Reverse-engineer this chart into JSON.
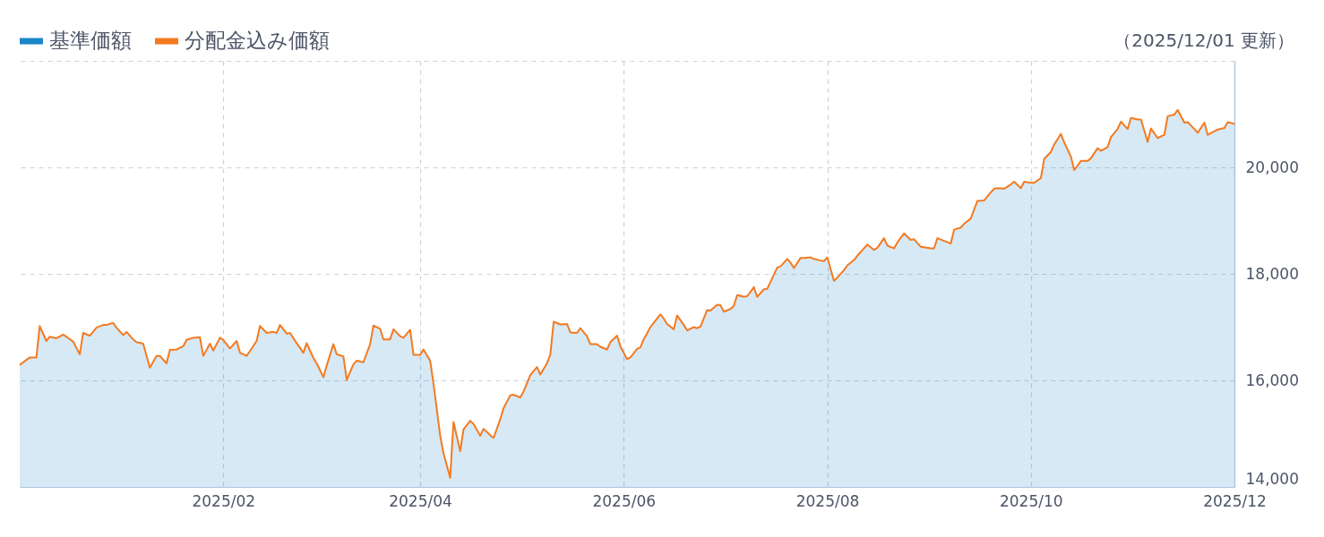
{
  "chart_data": {
    "type": "line",
    "annotations": [
      "（2025/12/01 更新）"
    ],
    "legend": "top left",
    "grid": true,
    "xlim": [
      "2024-12-02",
      "2025-12-01"
    ],
    "xticks": [
      {
        "value": "2025-02-01",
        "label": "2025/02"
      },
      {
        "value": "2025-04-01",
        "label": "2025/04"
      },
      {
        "value": "2025-06-01",
        "label": "2025/06"
      },
      {
        "value": "2025-08-01",
        "label": "2025/08"
      },
      {
        "value": "2025-10-01",
        "label": "2025/10"
      },
      {
        "value": "2025-12-01",
        "label": "2025/12"
      }
    ],
    "ylim": [
      14000,
      22000
    ],
    "yticks": [
      {
        "value": 14000,
        "label": "14,000"
      },
      {
        "value": 16000,
        "label": "16,000"
      },
      {
        "value": 18000,
        "label": "18,000"
      },
      {
        "value": 20000,
        "label": "20,000"
      },
      {
        "value": 22000,
        "label": null
      }
    ],
    "x": [
      "2024-12-02",
      "2024-12-05",
      "2024-12-07",
      "2024-12-08",
      "2024-12-10",
      "2024-12-11",
      "2024-12-13",
      "2024-12-15",
      "2024-12-16",
      "2024-12-18",
      "2024-12-20",
      "2024-12-21",
      "2024-12-23",
      "2024-12-25",
      "2024-12-27",
      "2024-12-28",
      "2024-12-30",
      "2024-12-31",
      "2025-01-02",
      "2025-01-03",
      "2025-01-05",
      "2025-01-06",
      "2025-01-08",
      "2025-01-10",
      "2025-01-12",
      "2025-01-13",
      "2025-01-15",
      "2025-01-16",
      "2025-01-18",
      "2025-01-20",
      "2025-01-21",
      "2025-01-23",
      "2025-01-25",
      "2025-01-26",
      "2025-01-28",
      "2025-01-29",
      "2025-01-31",
      "2025-02-01",
      "2025-02-03",
      "2025-02-05",
      "2025-02-06",
      "2025-02-08",
      "2025-02-09",
      "2025-02-11",
      "2025-02-12",
      "2025-02-14",
      "2025-02-16",
      "2025-02-17",
      "2025-02-18",
      "2025-02-20",
      "2025-02-21",
      "2025-02-23",
      "2025-02-25",
      "2025-02-26",
      "2025-02-28",
      "2025-03-01",
      "2025-03-03",
      "2025-03-04",
      "2025-03-06",
      "2025-03-07",
      "2025-03-09",
      "2025-03-10",
      "2025-03-12",
      "2025-03-13",
      "2025-03-15",
      "2025-03-17",
      "2025-03-18",
      "2025-03-20",
      "2025-03-21",
      "2025-03-23",
      "2025-03-24",
      "2025-03-26",
      "2025-03-27",
      "2025-03-29",
      "2025-03-30",
      "2025-04-01",
      "2025-04-02",
      "2025-04-04",
      "2025-04-05",
      "2025-04-07",
      "2025-04-08",
      "2025-04-10",
      "2025-04-11",
      "2025-04-13",
      "2025-04-14",
      "2025-04-16",
      "2025-04-17",
      "2025-04-19",
      "2025-04-20",
      "2025-04-22",
      "2025-04-23",
      "2025-04-25",
      "2025-04-26",
      "2025-04-28",
      "2025-04-29",
      "2025-05-01",
      "2025-05-02",
      "2025-05-04",
      "2025-05-06",
      "2025-05-07",
      "2025-05-09",
      "2025-05-10",
      "2025-05-11",
      "2025-05-13",
      "2025-05-15",
      "2025-05-16",
      "2025-05-18",
      "2025-05-19",
      "2025-05-21",
      "2025-05-22",
      "2025-05-24",
      "2025-05-25",
      "2025-05-27",
      "2025-05-28",
      "2025-05-30",
      "2025-05-31",
      "2025-06-02",
      "2025-06-03",
      "2025-06-05",
      "2025-06-06",
      "2025-06-07",
      "2025-06-09",
      "2025-06-10",
      "2025-06-12",
      "2025-06-13",
      "2025-06-14",
      "2025-06-16",
      "2025-06-17",
      "2025-06-19",
      "2025-06-20",
      "2025-06-22",
      "2025-06-23",
      "2025-06-24",
      "2025-06-26",
      "2025-06-27",
      "2025-06-29",
      "2025-06-30",
      "2025-07-01",
      "2025-07-03",
      "2025-07-04",
      "2025-07-05",
      "2025-07-07",
      "2025-07-08",
      "2025-07-10",
      "2025-07-11",
      "2025-07-13",
      "2025-07-14",
      "2025-07-15",
      "2025-07-17",
      "2025-07-18",
      "2025-07-20",
      "2025-07-21",
      "2025-07-22",
      "2025-07-24",
      "2025-07-25",
      "2025-07-27",
      "2025-07-28",
      "2025-07-30",
      "2025-07-31",
      "2025-08-01",
      "2025-08-03",
      "2025-08-04",
      "2025-08-06",
      "2025-08-07",
      "2025-08-09",
      "2025-08-10",
      "2025-08-12",
      "2025-08-13",
      "2025-08-15",
      "2025-08-16",
      "2025-08-18",
      "2025-08-19",
      "2025-08-21",
      "2025-08-22",
      "2025-08-24",
      "2025-08-26",
      "2025-08-27",
      "2025-08-29",
      "2025-08-30",
      "2025-09-01",
      "2025-09-02",
      "2025-09-03",
      "2025-09-05",
      "2025-09-07",
      "2025-09-08",
      "2025-09-10",
      "2025-09-11",
      "2025-09-13",
      "2025-09-14",
      "2025-09-15",
      "2025-09-17",
      "2025-09-19",
      "2025-09-20",
      "2025-09-21",
      "2025-09-23",
      "2025-09-25",
      "2025-09-26",
      "2025-09-28",
      "2025-09-29",
      "2025-10-01",
      "2025-10-02",
      "2025-10-04",
      "2025-10-05",
      "2025-10-07",
      "2025-10-08",
      "2025-10-10",
      "2025-10-11",
      "2025-10-13",
      "2025-10-14",
      "2025-10-16",
      "2025-10-18",
      "2025-10-19",
      "2025-10-21",
      "2025-10-22",
      "2025-10-24",
      "2025-10-25",
      "2025-10-27",
      "2025-10-28",
      "2025-10-30",
      "2025-10-31",
      "2025-11-02",
      "2025-11-03",
      "2025-11-05",
      "2025-11-06",
      "2025-11-08",
      "2025-11-10",
      "2025-11-11",
      "2025-11-13",
      "2025-11-14",
      "2025-11-16",
      "2025-11-17",
      "2025-11-19",
      "2025-11-20",
      "2025-11-22",
      "2025-11-23",
      "2025-11-25",
      "2025-11-26",
      "2025-11-28",
      "2025-11-29",
      "2025-12-01"
    ],
    "series": [
      {
        "name": "基準価額",
        "type": "area",
        "color": "#1a86c8",
        "values": [
          16290,
          16430,
          16430,
          17020,
          16740,
          16820,
          16790,
          16860,
          16820,
          16730,
          16490,
          16890,
          16840,
          16990,
          17040,
          17040,
          17080,
          16990,
          16850,
          16910,
          16770,
          16720,
          16690,
          16240,
          16460,
          16460,
          16320,
          16570,
          16580,
          16640,
          16760,
          16800,
          16810,
          16460,
          16690,
          16560,
          16800,
          16760,
          16600,
          16740,
          16520,
          16460,
          16550,
          16740,
          17020,
          16890,
          16910,
          16890,
          17040,
          16880,
          16890,
          16700,
          16520,
          16700,
          16420,
          16320,
          16060,
          16280,
          16680,
          16490,
          16450,
          16010,
          16300,
          16370,
          16340,
          16680,
          17030,
          16970,
          16770,
          16770,
          16960,
          16830,
          16800,
          16950,
          16480,
          16480,
          16580,
          16370,
          15940,
          14960,
          14630,
          14170,
          15220,
          14670,
          15080,
          15240,
          15180,
          14960,
          15090,
          14970,
          14920,
          15270,
          15480,
          15720,
          15730,
          15680,
          15790,
          16100,
          16250,
          16110,
          16320,
          16480,
          17100,
          17050,
          17060,
          16900,
          16890,
          16980,
          16830,
          16680,
          16680,
          16630,
          16580,
          16720,
          16840,
          16640,
          16400,
          16430,
          16590,
          16620,
          16770,
          17000,
          17080,
          17240,
          17160,
          17060,
          16960,
          17220,
          17040,
          16940,
          17000,
          16980,
          17010,
          17320,
          17310,
          17420,
          17410,
          17290,
          17340,
          17400,
          17600,
          17570,
          17580,
          17750,
          17570,
          17710,
          17720,
          17850,
          18120,
          18140,
          18280,
          18210,
          18110,
          18300,
          18300,
          18310,
          18280,
          18250,
          18240,
          18310,
          17870,
          17930,
          18070,
          18160,
          18260,
          18340,
          18480,
          18550,
          18450,
          18490,
          18670,
          18530,
          18480,
          18590,
          18760,
          18640,
          18650,
          18510,
          18500,
          18480,
          18480,
          18670,
          18620,
          18570,
          18830,
          18870,
          18940,
          19040,
          19210,
          19370,
          19380,
          19530,
          19600,
          19610,
          19600,
          19680,
          19730,
          19610,
          19730,
          19710,
          19710,
          19800,
          20160,
          20290,
          20430,
          20630,
          20470,
          20200,
          19950,
          20120,
          20120,
          20170,
          20360,
          20310,
          20380,
          20570,
          20720,
          20860,
          20720,
          20930,
          20900,
          20900,
          20480,
          20730,
          20550,
          20610,
          20960,
          20990,
          21080,
          20840,
          20850,
          20720,
          20650,
          20840,
          20610,
          20680,
          20710,
          20740,
          20850,
          20820
        ]
      },
      {
        "name": "分配金込み価額",
        "color": "#f47a20",
        "values": [
          16290,
          16430,
          16430,
          17020,
          16740,
          16820,
          16790,
          16860,
          16820,
          16730,
          16490,
          16890,
          16840,
          16990,
          17040,
          17040,
          17080,
          16990,
          16850,
          16910,
          16770,
          16720,
          16690,
          16240,
          16460,
          16460,
          16320,
          16570,
          16580,
          16640,
          16760,
          16800,
          16810,
          16460,
          16690,
          16560,
          16800,
          16760,
          16600,
          16740,
          16520,
          16460,
          16550,
          16740,
          17020,
          16890,
          16910,
          16890,
          17040,
          16880,
          16890,
          16700,
          16520,
          16700,
          16420,
          16320,
          16060,
          16280,
          16680,
          16490,
          16450,
          16010,
          16300,
          16370,
          16340,
          16680,
          17030,
          16970,
          16770,
          16770,
          16960,
          16830,
          16800,
          16950,
          16480,
          16480,
          16580,
          16370,
          15940,
          14960,
          14630,
          14170,
          15220,
          14670,
          15080,
          15240,
          15180,
          14960,
          15090,
          14970,
          14920,
          15270,
          15480,
          15720,
          15730,
          15680,
          15790,
          16100,
          16250,
          16110,
          16320,
          16480,
          17100,
          17050,
          17060,
          16900,
          16890,
          16980,
          16830,
          16680,
          16680,
          16630,
          16580,
          16720,
          16840,
          16640,
          16400,
          16430,
          16590,
          16620,
          16770,
          17000,
          17080,
          17240,
          17160,
          17060,
          16960,
          17220,
          17040,
          16940,
          17000,
          16980,
          17010,
          17320,
          17310,
          17420,
          17410,
          17290,
          17340,
          17400,
          17600,
          17570,
          17580,
          17750,
          17570,
          17710,
          17720,
          17850,
          18120,
          18140,
          18280,
          18210,
          18110,
          18300,
          18300,
          18310,
          18280,
          18250,
          18240,
          18310,
          17870,
          17930,
          18070,
          18160,
          18260,
          18340,
          18480,
          18550,
          18450,
          18490,
          18670,
          18530,
          18480,
          18590,
          18760,
          18640,
          18650,
          18510,
          18500,
          18480,
          18480,
          18670,
          18620,
          18570,
          18830,
          18870,
          18940,
          19040,
          19210,
          19370,
          19380,
          19530,
          19600,
          19610,
          19600,
          19680,
          19730,
          19610,
          19730,
          19710,
          19710,
          19800,
          20160,
          20290,
          20430,
          20630,
          20470,
          20200,
          19950,
          20120,
          20120,
          20170,
          20360,
          20310,
          20380,
          20570,
          20720,
          20860,
          20720,
          20930,
          20900,
          20900,
          20480,
          20730,
          20550,
          20610,
          20960,
          20990,
          21080,
          20840,
          20850,
          20720,
          20650,
          20840,
          20610,
          20680,
          20710,
          20740,
          20850,
          20820
        ]
      }
    ]
  }
}
